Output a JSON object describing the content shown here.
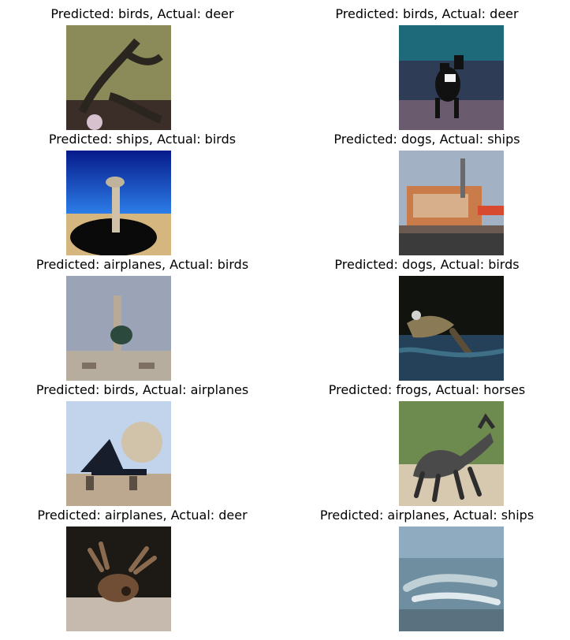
{
  "grid": {
    "items": [
      {
        "title": "Predicted: birds, Actual: deer",
        "colors": {
          "bg": "#8a8b58",
          "accent": "#2b2520",
          "detail": "#d7c1cf"
        }
      },
      {
        "title": "Predicted: birds, Actual: deer",
        "colors": {
          "bg": "#2f3c55",
          "accent": "#111111",
          "detail": "#7a8fb1"
        }
      },
      {
        "title": "Predicted: ships, Actual: birds",
        "colors": {
          "bg": "#1a46c8",
          "accent": "#0a0a0a",
          "detail": "#d4b67e"
        }
      },
      {
        "title": "Predicted: dogs, Actual: ships",
        "colors": {
          "bg": "#a2b2c4",
          "accent": "#c97b49",
          "detail": "#3b3b3b"
        }
      },
      {
        "title": "Predicted: airplanes, Actual: birds",
        "colors": {
          "bg": "#9aa4b6",
          "accent": "#2b4a3d",
          "detail": "#b7ad9e"
        }
      },
      {
        "title": "Predicted: dogs, Actual: birds",
        "colors": {
          "bg": "#11130e",
          "accent": "#8a7a56",
          "detail": "#25415a"
        }
      },
      {
        "title": "Predicted: birds, Actual: airplanes",
        "colors": {
          "bg": "#c2d4ec",
          "accent": "#171d2a",
          "detail": "#bca88e"
        }
      },
      {
        "title": "Predicted: frogs, Actual: horses",
        "colors": {
          "bg": "#6e8b4f",
          "accent": "#4a4a4a",
          "detail": "#d7c8b0"
        }
      },
      {
        "title": "Predicted: airplanes, Actual: deer",
        "colors": {
          "bg": "#1d1a16",
          "accent": "#6f4e35",
          "detail": "#c6b9ad"
        }
      },
      {
        "title": "Predicted: airplanes, Actual: ships",
        "colors": {
          "bg": "#6f8ea0",
          "accent": "#bfd0d6",
          "detail": "#5a7180"
        }
      }
    ]
  }
}
